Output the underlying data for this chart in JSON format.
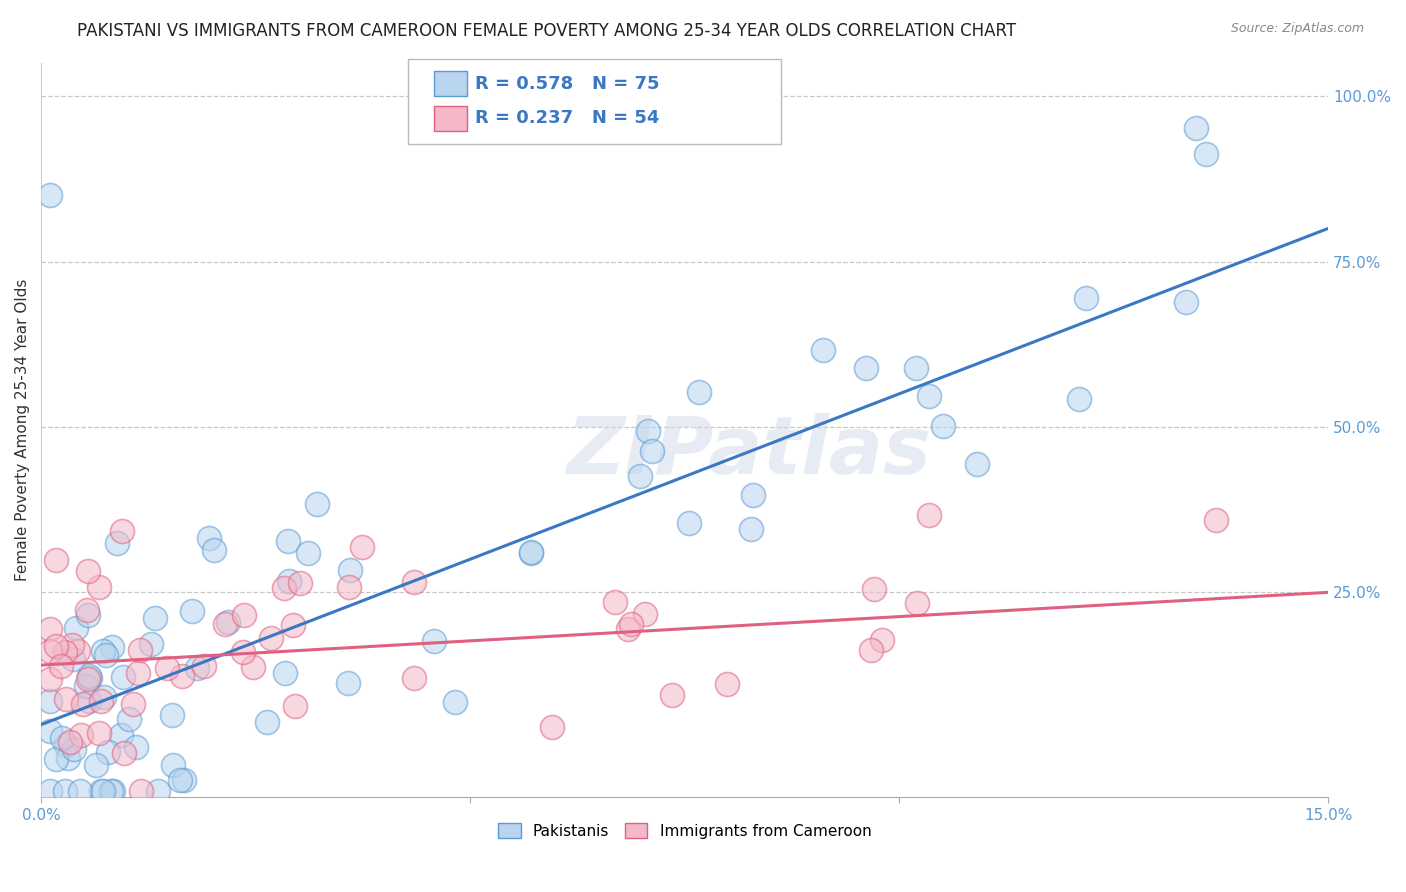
{
  "title": "PAKISTANI VS IMMIGRANTS FROM CAMEROON FEMALE POVERTY AMONG 25-34 YEAR OLDS CORRELATION CHART",
  "source": "Source: ZipAtlas.com",
  "ylabel": "Female Poverty Among 25-34 Year Olds",
  "xlim": [
    0.0,
    0.15
  ],
  "ylim": [
    -0.06,
    1.05
  ],
  "ytick_labels_right": [
    "100.0%",
    "75.0%",
    "50.0%",
    "25.0%"
  ],
  "ytick_vals_right": [
    1.0,
    0.75,
    0.5,
    0.25
  ],
  "blue_R": "0.578",
  "blue_N": "75",
  "pink_R": "0.237",
  "pink_N": "54",
  "blue_color": "#b8d4ee",
  "blue_edge_color": "#5b9bd5",
  "pink_color": "#f4b8c8",
  "pink_edge_color": "#e06080",
  "blue_line_color": "#3b78c3",
  "pink_line_color": "#e06080",
  "legend_label_blue": "Pakistanis",
  "legend_label_pink": "Immigrants from Cameroon",
  "watermark": "ZIPatlas",
  "background_color": "#ffffff",
  "grid_color": "#c8c8c8",
  "title_fontsize": 12,
  "axis_label_fontsize": 11,
  "tick_fontsize": 11
}
